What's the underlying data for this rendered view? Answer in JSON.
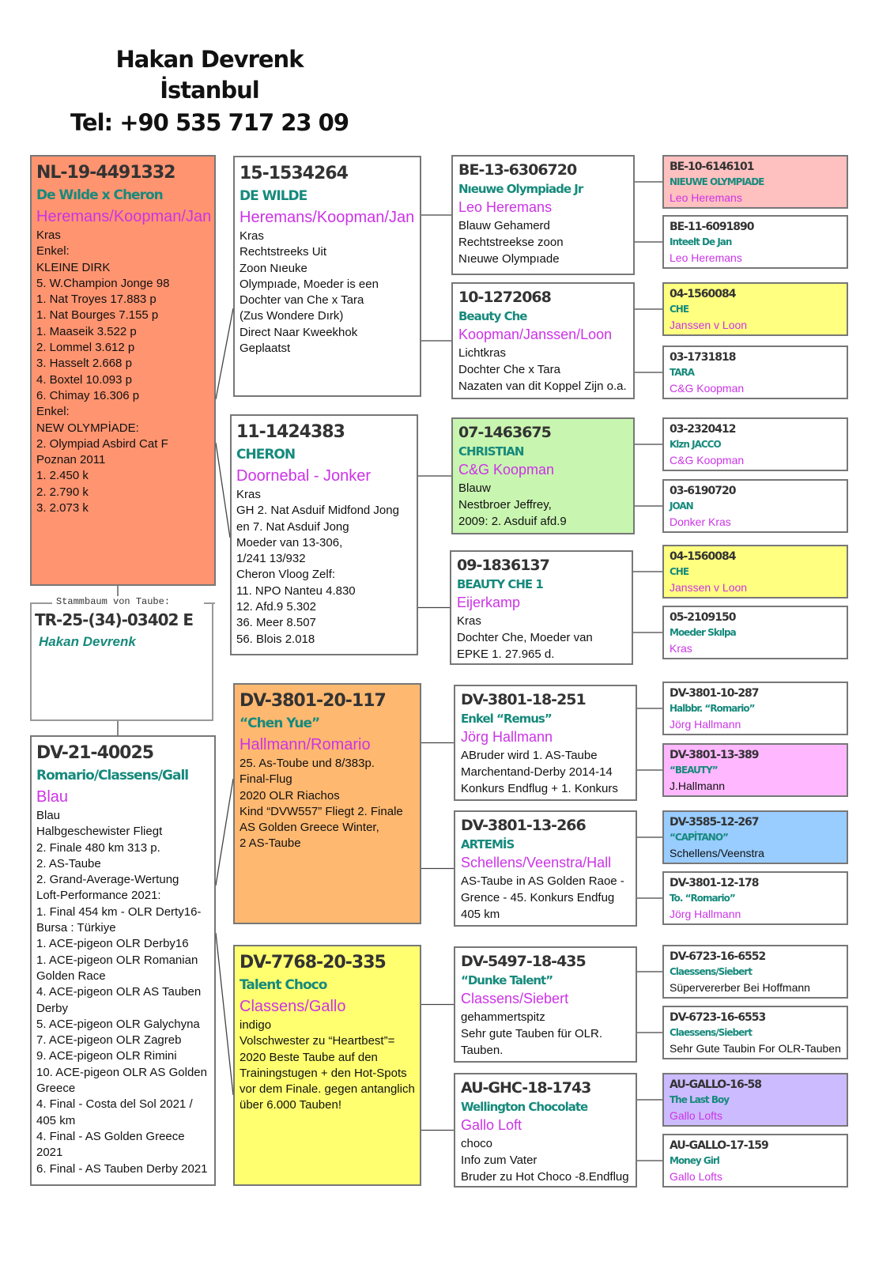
{
  "header": {
    "name": "Hakan Devrenk",
    "city": "İstanbul",
    "phone": "Tel: +90 535 717 23 09"
  },
  "certificate": {
    "label": "Stammbaum von Taube:",
    "ring": "TR-25-(34)-03402 E",
    "owner": "Hakan Devrenk"
  },
  "colors": {
    "ring": "#333333",
    "name": "#168a7c",
    "owner": "#cc33e6",
    "salmon": "#ff9470",
    "orange": "#ffb870",
    "yellow": "#ffff70",
    "green": "#c8f5b0",
    "pink": "#ffc0c0",
    "magenta": "#ffb8ff",
    "blue": "#99ccff",
    "lavender": "#ccbbff"
  },
  "boxes": [
    {
      "ring": "NL-19-4491332",
      "name": "De Wılde x Cheron",
      "owner": "Heremans/Koopman/Jan",
      "color": "#ff9470",
      "lines": [
        "Kras",
        "Enkel:",
        "KLEINE DIRK",
        "5. W.Champion Jonge 98",
        "1. Nat Troyes  17.883 p",
        "1. Nat Bourges 7.155 p",
        "1. Maaseik       3.522 p",
        "2. Lommel       3.612 p",
        "3. Hasselt       2.668 p",
        "4. Boxtel      10.093 p",
        "6. Chimay     16.306 p",
        "Enkel:",
        "NEW OLYMPİADE:",
        "2. Olympiad Asbird Cat F",
        "Poznan 2011",
        "1.  2.450 k",
        "2.  2.790 k",
        "3.  2.073 k"
      ]
    },
    {
      "ring": "DV-21-40025",
      "name": "Romario/Classens/Gall",
      "owner": "Blau",
      "color": "#ffffff",
      "lines": [
        "Blau",
        "Halbgeschewister Fliegt",
        "2. Finale 480 km 313 p.",
        "2. AS-Taube",
        "2. Grand-Average-Wertung",
        "Loft-Performance 2021:",
        "1. Final 454 km - OLR Derty16-",
        "Bursa : Türkiye",
        "1. ACE-pigeon OLR Derby16",
        "1. ACE-pigeon OLR Romanian",
        "Golden Race",
        "4. ACE-pigeon OLR AS Tauben",
        "Derby",
        "5. ACE-pigeon OLR Galychyna",
        "7. ACE-pigeon OLR Zagreb",
        "9. ACE-pigeon OLR Rimini",
        "10. ACE-pigeon OLR AS Golden",
        "Greece",
        "4. Final - Costa del Sol 2021 /",
        "405 km",
        "4. Final - AS Golden Greece",
        "2021",
        "6. Final - AS Tauben Derby 2021"
      ]
    },
    {
      "ring": "15-1534264",
      "name": "DE WILDE",
      "owner": "Heremans/Koopman/Jan",
      "color": "#ffffff",
      "lines": [
        "Kras",
        "Rechtstreeks Uit",
        "Zoon Nıeuke",
        "Olympıade, Moeder is een",
        "Dochter van Che x Tara",
        "(Zus Wondere Dırk)",
        "Direct Naar Kweekhok",
        "Geplaatst"
      ]
    },
    {
      "ring": "11-1424383",
      "name": "CHERON",
      "owner": "Doornebal - Jonker",
      "color": "#ffffff",
      "lines": [
        "Kras",
        "GH 2. Nat Asduif Midfond Jong",
        "en 7. Nat Asduif Jong",
        "Moeder van 13-306,",
        "1/241 13/932",
        "Cheron Vloog Zelf:",
        "11. NPO Nanteu 4.830",
        "12. Afd.9  5.302",
        "36. Meer  8.507",
        "56. Blois  2.018"
      ]
    },
    {
      "ring": "DV-3801-20-117",
      "name": "“Chen Yue”",
      "owner": "Hallmann/Romario",
      "color": "#ffb870",
      "lines": [
        "25. As-Toube und 8/383p.",
        "Final-Flug",
        "2020 OLR Riachos",
        "Kind “DVW557” Fliegt 2. Finale",
        "AS Golden Greece Winter,",
        "2 AS-Taube"
      ]
    },
    {
      "ring": "DV-7768-20-335",
      "name": "Talent Choco",
      "owner": "Classens/Gallo",
      "color": "#ffff70",
      "lines": [
        "indigo",
        "Volschwester zu “Heartbest”=",
        "2020 Beste Taube auf den",
        "Trainingstugen + den Hot-Spots",
        "vor dem Finale. gegen antanglich",
        "über 6.000 Tauben!"
      ]
    },
    {
      "ring": "BE-13-6306720",
      "name": "Nıeuwe Olympiade Jr",
      "owner": "Leo Heremans",
      "color": "#ffffff",
      "lines": [
        "Blauw Gehamerd",
        "Rechtstreekse zoon",
        "Nıeuwe Olympıade"
      ]
    },
    {
      "ring": "10-1272068",
      "name": "Beauty Che",
      "owner": "Koopman/Janssen/Loon",
      "color": "#ffffff",
      "lines": [
        "Lichtkras",
        "Dochter Che x Tara",
        "Nazaten van dit Koppel Zijn o.a."
      ]
    },
    {
      "ring": "07-1463675",
      "name": "CHRISTIAN",
      "owner": "C&G Koopman",
      "color": "#c8f5b0",
      "lines": [
        "Blauw",
        "Nestbroer Jeffrey,",
        "2009: 2. Asduif afd.9"
      ]
    },
    {
      "ring": "09-1836137",
      "name": "BEAUTY CHE 1",
      "owner": "Eijerkamp",
      "color": "#ffffff",
      "lines": [
        "Kras",
        "Dochter Che, Moeder van",
        "EPKE 1.  27.965 d."
      ]
    },
    {
      "ring": "DV-3801-18-251",
      "name": "Enkel “Remus”",
      "owner": "Jörg Hallmann",
      "color": "#ffffff",
      "lines": [
        "ABruder wird 1. AS-Taube",
        "Marchentand-Derby 2014-14",
        "Konkurs Endflug + 1. Konkurs"
      ]
    },
    {
      "ring": "DV-3801-13-266",
      "name": "ARTEMİS",
      "owner": "Schellens/Veenstra/Hall",
      "color": "#ffffff",
      "lines": [
        "AS-Taube in AS Golden Raoe -",
        "Grence - 45. Konkurs Endfug",
        "405 km"
      ]
    },
    {
      "ring": "DV-5497-18-435",
      "name": "“Dunke Talent”",
      "owner": "Classens/Siebert",
      "color": "#ffffff",
      "lines": [
        "gehammertspitz",
        "Sehr gute Tauben für OLR.",
        "Tauben."
      ]
    },
    {
      "ring": "AU-GHC-18-1743",
      "name": "Wellington Chocolate",
      "owner": "Gallo Loft",
      "color": "#ffffff",
      "lines": [
        "choco",
        "Info zum Vater",
        "Bruder zu Hot Choco -8.Endflug"
      ]
    },
    {
      "ring": "BE-10-6146101",
      "name": "NIEUWE OLYMPIADE",
      "owner": "Leo Heremans",
      "color": "#ffc0c0",
      "lines": []
    },
    {
      "ring": "BE-11-6091890",
      "name": "Inteelt De Jan",
      "owner": "Leo Heremans",
      "color": "#ffffff",
      "lines": []
    },
    {
      "ring": "04-1560084",
      "name": "CHE",
      "owner": "Janssen v Loon",
      "color": "#ffff80",
      "lines": []
    },
    {
      "ring": "03-1731818",
      "name": "TARA",
      "owner": "C&G Koopman",
      "color": "#ffffff",
      "lines": []
    },
    {
      "ring": "03-2320412",
      "name": "Klzn JACCO",
      "owner": "C&G Koopman",
      "color": "#ffffff",
      "lines": []
    },
    {
      "ring": "03-6190720",
      "name": "JOAN",
      "owner": "Donker Kras",
      "color": "#ffffff",
      "lines": []
    },
    {
      "ring": "04-1560084",
      "name": "CHE",
      "owner": "Janssen v Loon",
      "color": "#ffff80",
      "lines": []
    },
    {
      "ring": "05-2109150",
      "name": "Moeder Skılpa",
      "owner": "Kras",
      "color": "#ffffff",
      "lines": []
    },
    {
      "ring": "DV-3801-10-287",
      "name": "Halbbr. “Romario”",
      "owner": "Jörg Hallmann",
      "color": "#ffffff",
      "lines": []
    },
    {
      "ring": "DV-3801-13-389",
      "name": "“BEAUTY”",
      "color": "#ffb8ff",
      "lines": [
        "J.Hallmann"
      ]
    },
    {
      "ring": "DV-3585-12-267",
      "name": "“CAPİTANO”",
      "color": "#99ccff",
      "lines": [
        "Schellens/Veenstra"
      ]
    },
    {
      "ring": "DV-3801-12-178",
      "name": "To. “Romario”",
      "owner": "Jörg Hallmann",
      "color": "#ffffff",
      "lines": []
    },
    {
      "ring": "DV-6723-16-6552",
      "name": "Claessens/Siebert",
      "color": "#ffffff",
      "lines": [
        "Süpervererber Bei Hoffmann"
      ]
    },
    {
      "ring": "DV-6723-16-6553",
      "name": "Claessens/Siebert",
      "color": "#ffffff",
      "lines": [
        "Sehr Gute Taubin For OLR-Tauben"
      ]
    },
    {
      "ring": "AU-GALLO-16-58",
      "name": "The Last Boy",
      "owner": "Gallo Lofts",
      "color": "#ccbbff",
      "lines": []
    },
    {
      "ring": "AU-GALLO-17-159",
      "name": "Money Girl",
      "owner": "Gallo Lofts",
      "color": "#ffffff",
      "lines": []
    }
  ]
}
